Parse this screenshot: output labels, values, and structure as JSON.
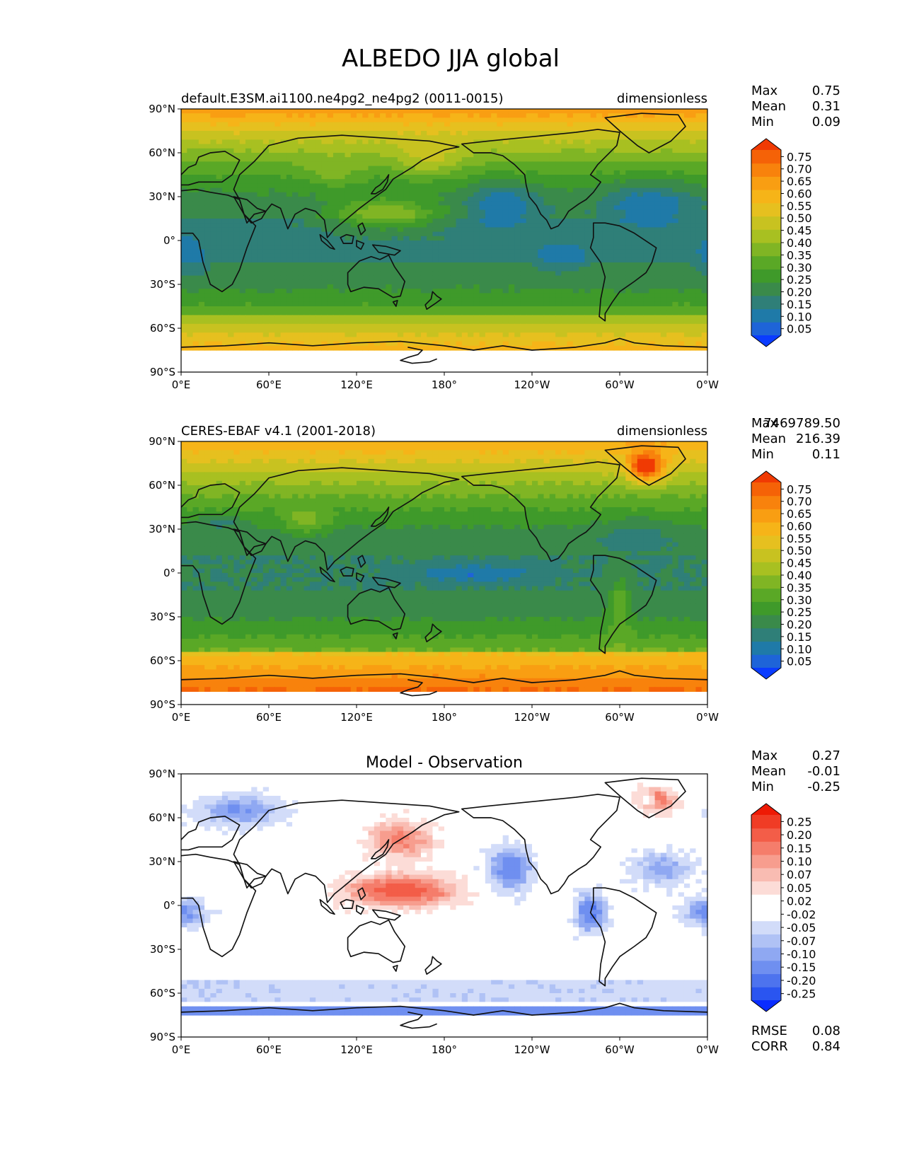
{
  "figure": {
    "title": "ALBEDO JJA global"
  },
  "axes": {
    "lat_ticks": [
      "90°N",
      "60°N",
      "30°N",
      "0°",
      "30°S",
      "60°S",
      "90°S"
    ],
    "lon_ticks": [
      "0°E",
      "60°E",
      "120°E",
      "180°",
      "120°W",
      "60°W",
      "0°W"
    ]
  },
  "colors": {
    "albedo_scale": [
      "#0a3cff",
      "#1e64d8",
      "#1f7aa8",
      "#2f7f78",
      "#3a8a4a",
      "#3f9a2a",
      "#5aa826",
      "#80b524",
      "#a8c021",
      "#c8c220",
      "#e6c01f",
      "#f6b418",
      "#f99e12",
      "#f8820c",
      "#f56207",
      "#f03a03"
    ],
    "diff_scale": [
      "#0a2cff",
      "#2a55f0",
      "#4d73ee",
      "#6f8ff0",
      "#8fa8f2",
      "#b0c2f5",
      "#d2dcf9",
      "#ffffff",
      "#ffffff",
      "#fcdcd7",
      "#f9bcb2",
      "#f79d8e",
      "#f57d6b",
      "#f35d48",
      "#f03c25",
      "#ee1a05"
    ]
  },
  "chart_data": [
    {
      "type": "heatmap",
      "title": "default.E3SM.ai1100.ne4pg2_ne4pg2 (0011-0015)",
      "units": "dimensionless",
      "stats": [
        {
          "label": "Max",
          "value": "0.75"
        },
        {
          "label": "Mean",
          "value": "0.31"
        },
        {
          "label": "Min",
          "value": "0.09"
        }
      ],
      "colorbar_ticks": [
        "0.75",
        "0.70",
        "0.65",
        "0.60",
        "0.55",
        "0.50",
        "0.45",
        "0.40",
        "0.35",
        "0.30",
        "0.25",
        "0.20",
        "0.15",
        "0.10",
        "0.05"
      ],
      "xlim": [
        0,
        360
      ],
      "ylim": [
        -90,
        90
      ]
    },
    {
      "type": "heatmap",
      "title": "CERES-EBAF v4.1 (2001-2018)",
      "units": "dimensionless",
      "stats": [
        {
          "label": "Max",
          "value": "7469789.50"
        },
        {
          "label": "Mean",
          "value": "216.39"
        },
        {
          "label": "Min",
          "value": "0.11"
        }
      ],
      "colorbar_ticks": [
        "0.75",
        "0.70",
        "0.65",
        "0.60",
        "0.55",
        "0.50",
        "0.45",
        "0.40",
        "0.35",
        "0.30",
        "0.25",
        "0.20",
        "0.15",
        "0.10",
        "0.05"
      ],
      "xlim": [
        0,
        360
      ],
      "ylim": [
        -90,
        90
      ]
    },
    {
      "type": "heatmap",
      "title": "Model - Observation",
      "units": "",
      "stats": [
        {
          "label": "Max",
          "value": "0.27"
        },
        {
          "label": "Mean",
          "value": "-0.01"
        },
        {
          "label": "Min",
          "value": "-0.25"
        }
      ],
      "colorbar_ticks": [
        "0.25",
        "0.20",
        "0.15",
        "0.10",
        "0.07",
        "0.05",
        "0.02",
        "-0.02",
        "-0.05",
        "-0.07",
        "-0.10",
        "-0.15",
        "-0.20",
        "-0.25"
      ],
      "metrics": [
        {
          "label": "RMSE",
          "value": "0.08"
        },
        {
          "label": "CORR",
          "value": "0.84"
        }
      ],
      "xlim": [
        0,
        360
      ],
      "ylim": [
        -90,
        90
      ]
    }
  ]
}
